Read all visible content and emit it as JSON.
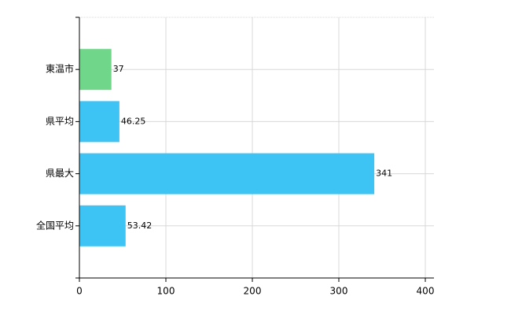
{
  "chart_data": {
    "type": "hbar",
    "categories": [
      "東温市",
      "県平均",
      "県最大",
      "全国平均"
    ],
    "values": [
      37,
      46.25,
      341,
      53.42
    ],
    "colors": [
      "#70d68a",
      "#3ec3f5",
      "#3ec3f5",
      "#3ec3f5"
    ],
    "xlim": [
      0,
      400
    ],
    "xticks": [
      0,
      100,
      200,
      300,
      400
    ],
    "grid": true
  }
}
